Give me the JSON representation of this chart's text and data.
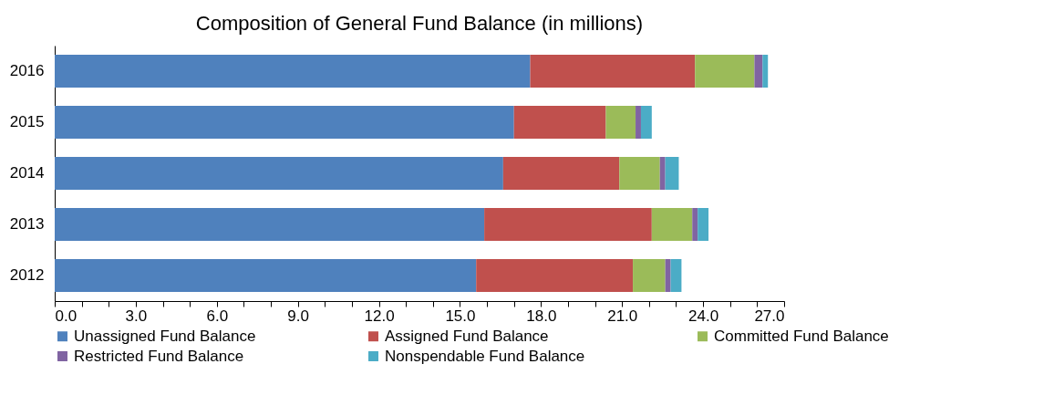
{
  "chart_data": {
    "type": "bar",
    "orientation": "horizontal",
    "stacked": true,
    "title": "Composition of General Fund Balance (in millions)",
    "categories": [
      "2016",
      "2015",
      "2014",
      "2013",
      "2012"
    ],
    "series": [
      {
        "name": "Unassigned Fund Balance",
        "color": "#4f81bd",
        "values": [
          17.6,
          17.0,
          16.6,
          15.9,
          15.6
        ]
      },
      {
        "name": "Assigned Fund Balance",
        "color": "#c0504d",
        "values": [
          6.1,
          3.4,
          4.3,
          6.2,
          5.8
        ]
      },
      {
        "name": "Committed Fund Balance",
        "color": "#9bbb59",
        "values": [
          2.2,
          1.1,
          1.5,
          1.5,
          1.2
        ]
      },
      {
        "name": "Restricted Fund Balance",
        "color": "#8064a2",
        "values": [
          0.3,
          0.2,
          0.2,
          0.2,
          0.2
        ]
      },
      {
        "name": "Nonspendable Fund Balance",
        "color": "#4bacc6",
        "values": [
          0.2,
          0.4,
          0.5,
          0.4,
          0.4
        ]
      }
    ],
    "xlim": [
      0,
      27
    ],
    "xticks": [
      {
        "value": 0,
        "label": "0.0"
      },
      {
        "value": 1,
        "label": null
      },
      {
        "value": 2,
        "label": null
      },
      {
        "value": 3,
        "label": "3.0"
      },
      {
        "value": 4,
        "label": null
      },
      {
        "value": 5,
        "label": null
      },
      {
        "value": 6,
        "label": "6.0"
      },
      {
        "value": 7,
        "label": null
      },
      {
        "value": 8,
        "label": null
      },
      {
        "value": 9,
        "label": "9.0"
      },
      {
        "value": 10,
        "label": null
      },
      {
        "value": 11,
        "label": null
      },
      {
        "value": 12,
        "label": "12.0"
      },
      {
        "value": 13,
        "label": null
      },
      {
        "value": 14,
        "label": null
      },
      {
        "value": 15,
        "label": "15.0"
      },
      {
        "value": 16,
        "label": null
      },
      {
        "value": 17,
        "label": null
      },
      {
        "value": 18,
        "label": "18.0"
      },
      {
        "value": 19,
        "label": null
      },
      {
        "value": 20,
        "label": null
      },
      {
        "value": 21,
        "label": "21.0"
      },
      {
        "value": 22,
        "label": null
      },
      {
        "value": 23,
        "label": null
      },
      {
        "value": 24,
        "label": "24.0"
      },
      {
        "value": 25,
        "label": null
      },
      {
        "value": 26,
        "label": null
      },
      {
        "value": 27,
        "label": "27.0"
      }
    ],
    "grid": false,
    "legend": "bottom"
  }
}
